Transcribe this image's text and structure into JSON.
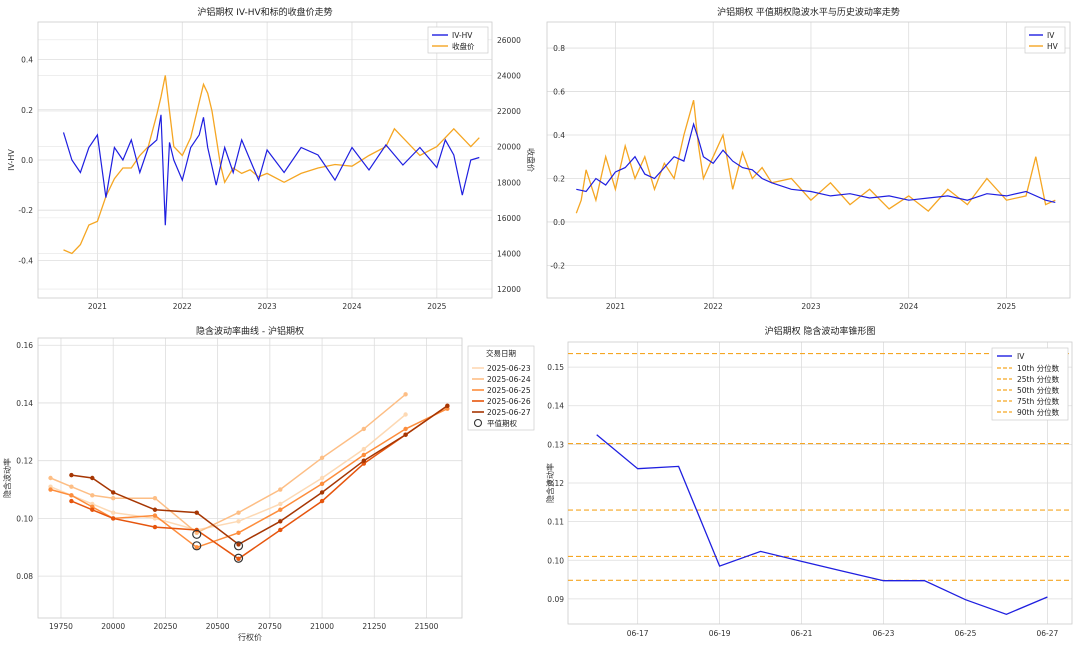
{
  "chart_data": [
    {
      "type": "line",
      "title": "沪铝期权 IV-HV和标的收盘价走势",
      "ylabel": "IV-HV",
      "y2label": "收盘价",
      "x_ticks": [
        "2021",
        "2022",
        "2023",
        "2024",
        "2025"
      ],
      "y_ticks": [
        "0.4",
        "0.2",
        "0.0",
        "-0.2",
        "-0.4"
      ],
      "y_tick_values": [
        0.4,
        0.2,
        0.0,
        -0.2,
        -0.4
      ],
      "y2_ticks": [
        "26000",
        "24000",
        "22000",
        "20000",
        "18000",
        "16000",
        "14000",
        "12000"
      ],
      "y2_tick_values": [
        26000,
        24000,
        22000,
        20000,
        18000,
        16000,
        14000,
        12000
      ],
      "ylim": [
        -0.55,
        0.55
      ],
      "y2lim": [
        11500,
        27000
      ],
      "xlim": [
        2020.3,
        2025.65
      ],
      "legend": "top-right",
      "colors": {
        "ivhv": "#1f1fe0",
        "close": "#f5a623",
        "left_axis": "#1f77b4",
        "right_axis": "#d62728"
      },
      "series": [
        {
          "name": "IV-HV",
          "x": [
            2020.6,
            2020.7,
            2020.8,
            2020.9,
            2021.0,
            2021.1,
            2021.2,
            2021.3,
            2021.4,
            2021.5,
            2021.6,
            2021.7,
            2021.75,
            2021.8,
            2021.85,
            2021.9,
            2022.0,
            2022.1,
            2022.2,
            2022.25,
            2022.3,
            2022.4,
            2022.5,
            2022.6,
            2022.7,
            2022.8,
            2022.9,
            2023.0,
            2023.2,
            2023.4,
            2023.6,
            2023.8,
            2024.0,
            2024.2,
            2024.4,
            2024.6,
            2024.8,
            2025.0,
            2025.1,
            2025.2,
            2025.3,
            2025.4,
            2025.5
          ],
          "values": [
            0.11,
            0.0,
            -0.05,
            0.05,
            0.1,
            -0.15,
            0.05,
            0.0,
            0.08,
            -0.05,
            0.05,
            0.08,
            0.18,
            -0.26,
            0.07,
            0.0,
            -0.08,
            0.05,
            0.1,
            0.17,
            0.05,
            -0.1,
            0.05,
            -0.05,
            0.08,
            0.0,
            -0.08,
            0.04,
            -0.05,
            0.05,
            0.02,
            -0.08,
            0.05,
            -0.04,
            0.06,
            -0.02,
            0.05,
            -0.03,
            0.08,
            0.02,
            -0.14,
            0.0,
            0.01
          ]
        },
        {
          "name": "收盘价",
          "x": [
            2020.6,
            2020.7,
            2020.8,
            2020.9,
            2021.0,
            2021.1,
            2021.2,
            2021.3,
            2021.4,
            2021.5,
            2021.6,
            2021.7,
            2021.75,
            2021.8,
            2021.85,
            2021.9,
            2022.0,
            2022.1,
            2022.2,
            2022.25,
            2022.3,
            2022.35,
            2022.45,
            2022.5,
            2022.6,
            2022.7,
            2022.8,
            2022.9,
            2023.0,
            2023.2,
            2023.4,
            2023.6,
            2023.8,
            2024.0,
            2024.2,
            2024.4,
            2024.5,
            2024.6,
            2024.8,
            2025.0,
            2025.2,
            2025.4,
            2025.5
          ],
          "values": [
            14200,
            14000,
            14500,
            15600,
            15800,
            17200,
            18200,
            18800,
            18800,
            19500,
            20000,
            21800,
            22800,
            24000,
            22000,
            20000,
            19500,
            20500,
            22500,
            23500,
            23000,
            22000,
            19000,
            18000,
            18800,
            18500,
            18700,
            18300,
            18500,
            18000,
            18500,
            18800,
            19000,
            18900,
            19500,
            20000,
            21000,
            20500,
            19500,
            20000,
            21000,
            20000,
            20500
          ]
        }
      ]
    },
    {
      "type": "line",
      "title": "沪铝期权 平值期权隐波水平与历史波动率走势",
      "x_ticks": [
        "2021",
        "2022",
        "2023",
        "2024",
        "2025"
      ],
      "y_ticks": [
        "0.8",
        "0.6",
        "0.4",
        "0.2",
        "0.0",
        "-0.2"
      ],
      "y_tick_values": [
        0.8,
        0.6,
        0.4,
        0.2,
        0.0,
        -0.2
      ],
      "ylim": [
        -0.35,
        0.92
      ],
      "xlim": [
        2020.3,
        2025.65
      ],
      "legend": "top-right",
      "colors": {
        "iv": "#1f1fe0",
        "hv": "#f5a623"
      },
      "series": [
        {
          "name": "IV",
          "x": [
            2020.6,
            2020.7,
            2020.8,
            2020.9,
            2021.0,
            2021.1,
            2021.2,
            2021.3,
            2021.4,
            2021.5,
            2021.6,
            2021.7,
            2021.8,
            2021.85,
            2021.9,
            2022.0,
            2022.1,
            2022.2,
            2022.3,
            2022.4,
            2022.5,
            2022.6,
            2022.8,
            2023.0,
            2023.2,
            2023.4,
            2023.6,
            2023.8,
            2024.0,
            2024.2,
            2024.4,
            2024.6,
            2024.8,
            2025.0,
            2025.2,
            2025.4,
            2025.5
          ],
          "values": [
            0.15,
            0.14,
            0.2,
            0.17,
            0.23,
            0.25,
            0.3,
            0.22,
            0.2,
            0.25,
            0.3,
            0.28,
            0.45,
            0.38,
            0.3,
            0.27,
            0.33,
            0.28,
            0.25,
            0.24,
            0.2,
            0.18,
            0.15,
            0.14,
            0.12,
            0.13,
            0.11,
            0.12,
            0.1,
            0.11,
            0.12,
            0.1,
            0.13,
            0.12,
            0.14,
            0.1,
            0.09
          ]
        },
        {
          "name": "HV",
          "x": [
            2020.6,
            2020.65,
            2020.7,
            2020.8,
            2020.9,
            2021.0,
            2021.1,
            2021.2,
            2021.3,
            2021.4,
            2021.5,
            2021.6,
            2021.7,
            2021.8,
            2021.85,
            2021.9,
            2022.0,
            2022.1,
            2022.2,
            2022.3,
            2022.4,
            2022.5,
            2022.6,
            2022.8,
            2023.0,
            2023.2,
            2023.4,
            2023.6,
            2023.8,
            2024.0,
            2024.2,
            2024.4,
            2024.6,
            2024.8,
            2025.0,
            2025.2,
            2025.3,
            2025.4,
            2025.5
          ],
          "values": [
            0.04,
            0.1,
            0.24,
            0.1,
            0.3,
            0.15,
            0.35,
            0.2,
            0.3,
            0.15,
            0.27,
            0.2,
            0.4,
            0.56,
            0.35,
            0.2,
            0.3,
            0.4,
            0.15,
            0.32,
            0.2,
            0.25,
            0.18,
            0.2,
            0.1,
            0.18,
            0.08,
            0.15,
            0.06,
            0.12,
            0.05,
            0.15,
            0.08,
            0.2,
            0.1,
            0.12,
            0.3,
            0.08,
            0.1
          ]
        }
      ]
    },
    {
      "type": "line",
      "title": "隐含波动率曲线 - 沪铝期权",
      "xlabel": "行权价",
      "ylabel": "隐含波动率",
      "x_ticks": [
        "19750",
        "20000",
        "20250",
        "20500",
        "20750",
        "21000",
        "21250",
        "21500"
      ],
      "x_tick_values": [
        19750,
        20000,
        20250,
        20500,
        20750,
        21000,
        21250,
        21500
      ],
      "y_ticks": [
        "0.16",
        "0.14",
        "0.12",
        "0.10",
        "0.08"
      ],
      "y_tick_values": [
        0.16,
        0.14,
        0.12,
        0.1,
        0.08
      ],
      "xlim": [
        19640,
        21670
      ],
      "ylim": [
        0.0655,
        0.1625
      ],
      "legend_title": "交易日期",
      "legend": "top-right",
      "atm_label": "平值期权",
      "series": [
        {
          "name": "2025-06-23",
          "color": "#fdd9b4",
          "x": [
            19700,
            19800,
            19900,
            20000,
            20200,
            20400,
            20600,
            20800,
            21000,
            21200,
            21400
          ],
          "values": [
            0.111,
            0.108,
            0.105,
            0.102,
            0.1,
            0.096,
            0.099,
            0.105,
            0.114,
            0.124,
            0.136
          ]
        },
        {
          "name": "2025-06-24",
          "color": "#fdbe85",
          "x": [
            19700,
            19800,
            19900,
            20000,
            20200,
            20400,
            20600,
            20800,
            21000,
            21200,
            21400
          ],
          "values": [
            0.114,
            0.111,
            0.108,
            0.107,
            0.107,
            0.095,
            0.102,
            0.11,
            0.121,
            0.131,
            0.143
          ]
        },
        {
          "name": "2025-06-25",
          "color": "#fd8d3c",
          "x": [
            19700,
            19800,
            19900,
            20000,
            20200,
            20400,
            20600,
            20800,
            21000,
            21200,
            21400,
            21600
          ],
          "values": [
            0.11,
            0.108,
            0.104,
            0.1,
            0.101,
            0.09,
            0.095,
            0.103,
            0.112,
            0.122,
            0.131,
            0.138
          ]
        },
        {
          "name": "2025-06-26",
          "color": "#e6550d",
          "x": [
            19800,
            19900,
            20000,
            20200,
            20400,
            20600,
            20800,
            21000,
            21200,
            21400,
            21600
          ],
          "values": [
            0.106,
            0.103,
            0.1,
            0.097,
            0.096,
            0.086,
            0.096,
            0.106,
            0.119,
            0.129,
            0.139
          ]
        },
        {
          "name": "2025-06-27",
          "color": "#a63603",
          "x": [
            19800,
            19900,
            20000,
            20200,
            20400,
            20600,
            20800,
            21000,
            21200,
            21400,
            21600
          ],
          "values": [
            0.115,
            0.114,
            0.109,
            0.103,
            0.102,
            0.091,
            0.099,
            0.109,
            0.12,
            0.129,
            0.139
          ]
        }
      ],
      "atm_points": [
        {
          "x": 20400,
          "y": 0.0945
        },
        {
          "x": 20400,
          "y": 0.0905
        },
        {
          "x": 20600,
          "y": 0.0905
        },
        {
          "x": 20600,
          "y": 0.0862
        }
      ]
    },
    {
      "type": "line",
      "title": "沪铝期权 隐含波动率锥形图",
      "ylabel": "隐含波动率",
      "x_ticks": [
        "06-17",
        "06-19",
        "06-21",
        "06-23",
        "06-25",
        "06-27"
      ],
      "x_tick_values": [
        17,
        19,
        21,
        23,
        25,
        27
      ],
      "y_ticks": [
        "0.15",
        "0.14",
        "0.13",
        "0.12",
        "0.11",
        "0.10",
        "0.09"
      ],
      "y_tick_values": [
        0.15,
        0.14,
        0.13,
        0.12,
        0.11,
        0.1,
        0.09
      ],
      "xlim": [
        15.3,
        27.6
      ],
      "ylim": [
        0.0835,
        0.1565
      ],
      "legend": "top-right",
      "series": [
        {
          "name": "IV",
          "color": "#1f1fe0",
          "x": [
            16,
            17,
            18,
            19,
            20,
            21,
            22,
            23,
            24,
            25,
            26,
            27
          ],
          "values": [
            0.1325,
            0.1237,
            0.1243,
            0.0985,
            0.1023,
            0.0997,
            0.0972,
            0.0947,
            0.0947,
            0.0898,
            0.086,
            0.0905
          ]
        }
      ],
      "percentiles": [
        {
          "name": "10th 分位数",
          "value": 0.0948
        },
        {
          "name": "25th 分位数",
          "value": 0.101
        },
        {
          "name": "50th 分位数",
          "value": 0.113
        },
        {
          "name": "75th 分位数",
          "value": 0.1302
        },
        {
          "name": "90th 分位数",
          "value": 0.1535
        }
      ],
      "percentile_color": "#f5a623"
    }
  ]
}
